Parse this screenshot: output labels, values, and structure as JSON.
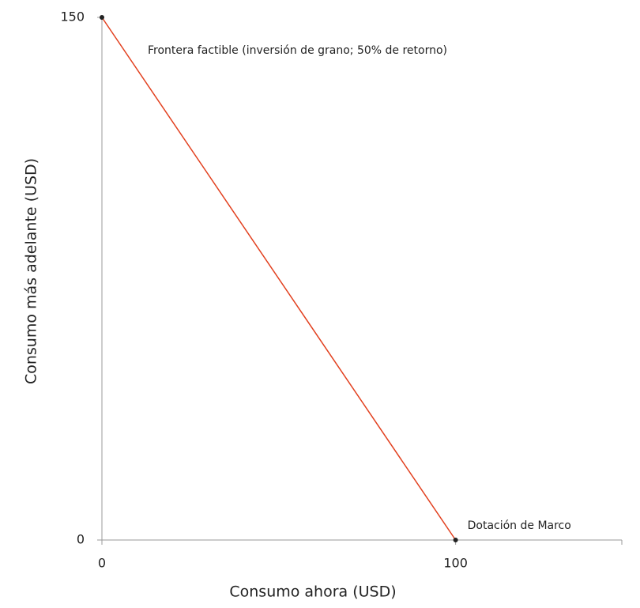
{
  "chart_data": {
    "type": "line",
    "x_label": "Consumo ahora (USD)",
    "y_label": "Consumo más adelante (USD)",
    "x": [
      0,
      100
    ],
    "values": [
      150,
      0
    ],
    "color": "#e2401f",
    "xlim": [
      0,
      147
    ],
    "xticks": [
      0,
      100
    ],
    "ylim": [
      0,
      150
    ],
    "yticks": [
      0,
      150
    ],
    "annotations": [
      "Frontera factible (inversión de grano; 50% de retorno)",
      "Dotación de Marco"
    ]
  }
}
